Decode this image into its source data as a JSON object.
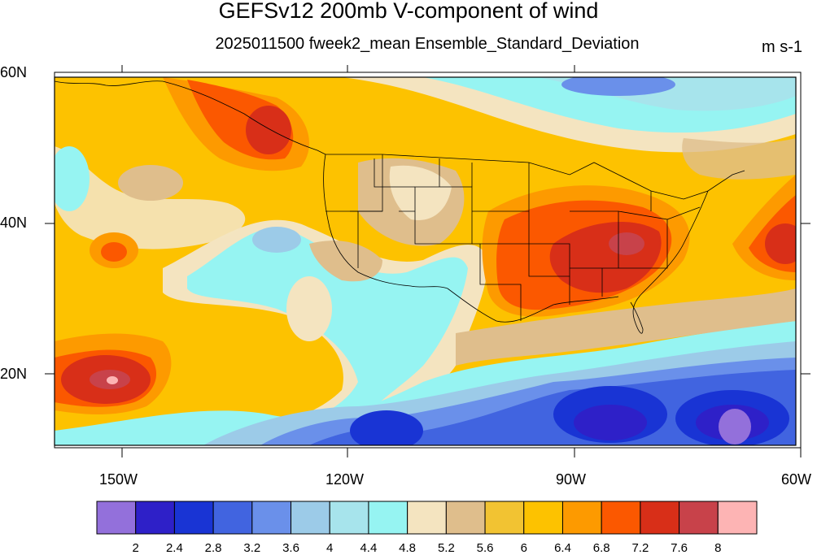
{
  "title": "GEFSv12 200mb V-component of wind",
  "subtitle": "2025011500 fweek2_mean Ensemble_Standard_Deviation",
  "units": "m s-1",
  "lat_labels": [
    "60N",
    "40N",
    "20N"
  ],
  "lon_labels": [
    "150W",
    "120W",
    "90W",
    "60W"
  ],
  "colorbar": {
    "colors": [
      "#9370db",
      "#2e20c8",
      "#1934d4",
      "#4164e0",
      "#6a90ea",
      "#9ccbe8",
      "#a7e4ec",
      "#96f4f2",
      "#f4e4c0",
      "#dfbe8c",
      "#f2c332",
      "#fdc200",
      "#fd9a00",
      "#fb5800",
      "#d82f18",
      "#c8424a",
      "#fdb4b4"
    ],
    "labels": [
      "2",
      "2.4",
      "2.8",
      "3.2",
      "3.6",
      "4",
      "4.4",
      "4.8",
      "5.2",
      "5.6",
      "6",
      "6.4",
      "6.8",
      "7.2",
      "7.6",
      "8"
    ]
  }
}
